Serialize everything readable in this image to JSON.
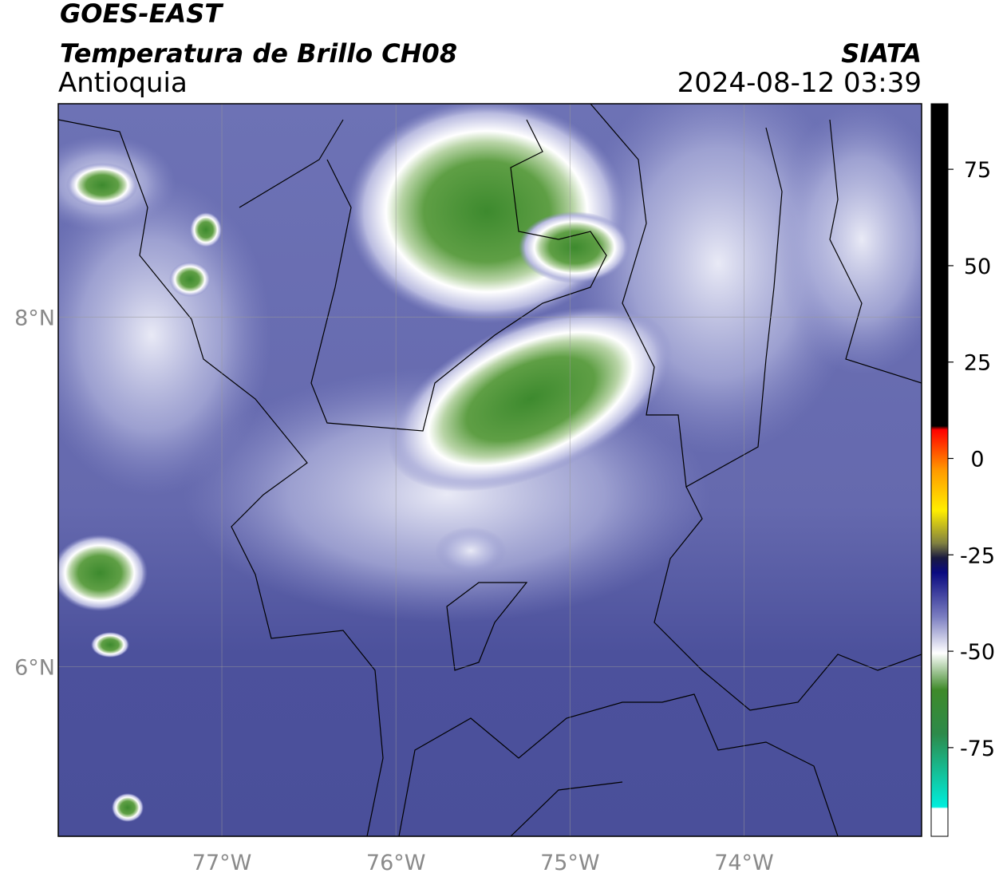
{
  "chart_data": {
    "type": "map",
    "title": "GOES-EAST",
    "subtitle": "Temperatura de Brillo CH08",
    "region": "Antioquia",
    "source": "SIATA",
    "datetime": "2024-08-12 03:39",
    "xlim": [
      -77.94,
      -72.98
    ],
    "ylim": [
      5.03,
      9.22
    ],
    "xticks": [
      {
        "value": -77,
        "label": "77°W"
      },
      {
        "value": -76,
        "label": "76°W"
      },
      {
        "value": -75,
        "label": "75°W"
      },
      {
        "value": -74,
        "label": "74°W"
      }
    ],
    "yticks": [
      {
        "value": 8,
        "label": "8°N"
      },
      {
        "value": 6,
        "label": "6°N"
      }
    ],
    "grid": true,
    "colorbar": {
      "clim": [
        -98,
        92
      ],
      "ticks": [
        75,
        50,
        25,
        0,
        -25,
        -50,
        -75
      ]
    }
  }
}
